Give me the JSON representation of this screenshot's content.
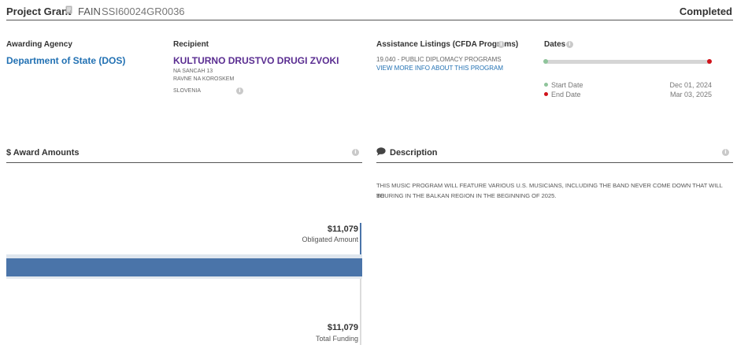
{
  "header": {
    "title": "Project Grant",
    "fain_label": "FAIN",
    "fain_value": "SSI60024GR0036",
    "status": "Completed"
  },
  "overview": {
    "awarding_agency": {
      "label": "Awarding Agency",
      "name": "Department of State (DOS)"
    },
    "recipient": {
      "label": "Recipient",
      "name": "KULTURNO DRUSTVO DRUGI ZVOKI",
      "address_line1": "NA SANCAH 13",
      "address_line2": "RAVNE NA KOROSKEM",
      "country": "SLOVENIA"
    },
    "cfda": {
      "label": "Assistance Listings (CFDA Programs)",
      "program": "19.040 - PUBLIC DIPLOMACY PROGRAMS",
      "link": "VIEW MORE INFO ABOUT THIS PROGRAM"
    },
    "dates": {
      "label": "Dates",
      "start_label": "Start Date",
      "start_value": "Dec 01, 2024",
      "end_label": "End Date",
      "end_value": "Mar 03, 2025",
      "progress": 1.0,
      "start_color": "#8fc49b",
      "end_color": "#d0121a"
    }
  },
  "award_amounts": {
    "title": "$ Award Amounts",
    "obligated_value": "$11,079",
    "obligated_label": "Obligated Amount",
    "total_value": "$11,079",
    "total_label": "Total Funding",
    "obligated_fraction": 1.0,
    "bar_color": "#4a74a9"
  },
  "description": {
    "title": "Description",
    "line1": "THIS MUSIC PROGRAM WILL FEATURE VARIOUS U.S. MUSICIANS, INCLUDING THE BAND NEVER COME DOWN THAT WILL BE",
    "line2": "TOURING IN THE BALKAN REGION IN THE BEGINNING OF 2025."
  },
  "icons": {
    "doc": "document-icon",
    "info": "info-icon",
    "comment": "comment-icon"
  }
}
